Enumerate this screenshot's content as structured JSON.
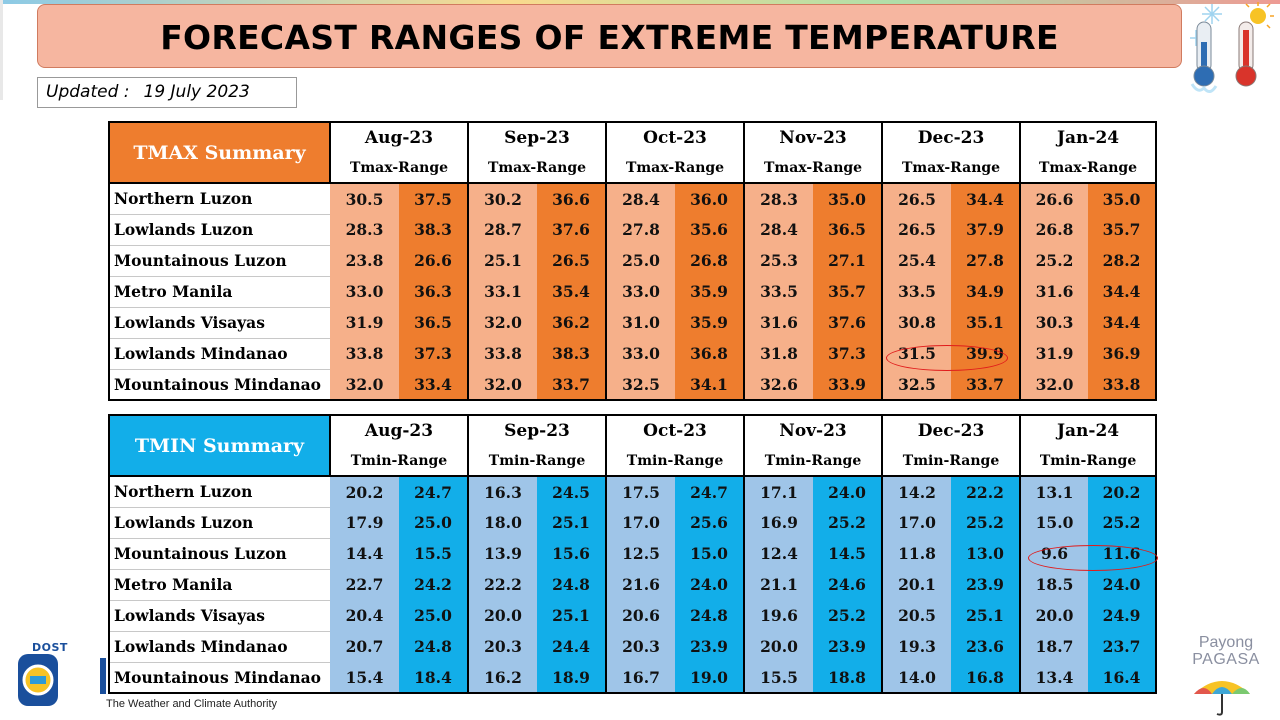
{
  "title": "FORECAST RANGES OF EXTREME TEMPERATURE",
  "updated": {
    "label": "Updated :",
    "date": "19 July 2023"
  },
  "months": [
    "Aug-23",
    "Sep-23",
    "Oct-23",
    "Nov-23",
    "Dec-23",
    "Jan-24"
  ],
  "regions": [
    "Northern Luzon",
    "Lowlands Luzon",
    "Mountainous Luzon",
    "Metro Manila",
    "Lowlands Visayas",
    "Lowlands Mindanao",
    "Mountainous Mindanao"
  ],
  "tmax": {
    "header": "TMAX Summary",
    "range_label": "Tmax-Range",
    "colors": {
      "header": "#ee7d2e",
      "low": "#f6b08a",
      "high": "#ee7d2e"
    },
    "rows": [
      [
        [
          "30.5",
          "37.5"
        ],
        [
          "30.2",
          "36.6"
        ],
        [
          "28.4",
          "36.0"
        ],
        [
          "28.3",
          "35.0"
        ],
        [
          "26.5",
          "34.4"
        ],
        [
          "26.6",
          "35.0"
        ]
      ],
      [
        [
          "28.3",
          "38.3"
        ],
        [
          "28.7",
          "37.6"
        ],
        [
          "27.8",
          "35.6"
        ],
        [
          "28.4",
          "36.5"
        ],
        [
          "26.5",
          "37.9"
        ],
        [
          "26.8",
          "35.7"
        ]
      ],
      [
        [
          "23.8",
          "26.6"
        ],
        [
          "25.1",
          "26.5"
        ],
        [
          "25.0",
          "26.8"
        ],
        [
          "25.3",
          "27.1"
        ],
        [
          "25.4",
          "27.8"
        ],
        [
          "25.2",
          "28.2"
        ]
      ],
      [
        [
          "33.0",
          "36.3"
        ],
        [
          "33.1",
          "35.4"
        ],
        [
          "33.0",
          "35.9"
        ],
        [
          "33.5",
          "35.7"
        ],
        [
          "33.5",
          "34.9"
        ],
        [
          "31.6",
          "34.4"
        ]
      ],
      [
        [
          "31.9",
          "36.5"
        ],
        [
          "32.0",
          "36.2"
        ],
        [
          "31.0",
          "35.9"
        ],
        [
          "31.6",
          "37.6"
        ],
        [
          "30.8",
          "35.1"
        ],
        [
          "30.3",
          "34.4"
        ]
      ],
      [
        [
          "33.8",
          "37.3"
        ],
        [
          "33.8",
          "38.3"
        ],
        [
          "33.0",
          "36.8"
        ],
        [
          "31.8",
          "37.3"
        ],
        [
          "31.5",
          "39.9"
        ],
        [
          "31.9",
          "36.9"
        ]
      ],
      [
        [
          "32.0",
          "33.4"
        ],
        [
          "32.0",
          "33.7"
        ],
        [
          "32.5",
          "34.1"
        ],
        [
          "32.6",
          "33.9"
        ],
        [
          "32.5",
          "33.7"
        ],
        [
          "32.0",
          "33.8"
        ]
      ]
    ]
  },
  "tmin": {
    "header": "TMIN Summary",
    "range_label": "Tmin-Range",
    "colors": {
      "header": "#12aee9",
      "low": "#9fc5e8",
      "high": "#12aee9"
    },
    "rows": [
      [
        [
          "20.2",
          "24.7"
        ],
        [
          "16.3",
          "24.5"
        ],
        [
          "17.5",
          "24.7"
        ],
        [
          "17.1",
          "24.0"
        ],
        [
          "14.2",
          "22.2"
        ],
        [
          "13.1",
          "20.2"
        ]
      ],
      [
        [
          "17.9",
          "25.0"
        ],
        [
          "18.0",
          "25.1"
        ],
        [
          "17.0",
          "25.6"
        ],
        [
          "16.9",
          "25.2"
        ],
        [
          "17.0",
          "25.2"
        ],
        [
          "15.0",
          "25.2"
        ]
      ],
      [
        [
          "14.4",
          "15.5"
        ],
        [
          "13.9",
          "15.6"
        ],
        [
          "12.5",
          "15.0"
        ],
        [
          "12.4",
          "14.5"
        ],
        [
          "11.8",
          "13.0"
        ],
        [
          "9.6",
          "11.6"
        ]
      ],
      [
        [
          "22.7",
          "24.2"
        ],
        [
          "22.2",
          "24.8"
        ],
        [
          "21.6",
          "24.0"
        ],
        [
          "21.1",
          "24.6"
        ],
        [
          "20.1",
          "23.9"
        ],
        [
          "18.5",
          "24.0"
        ]
      ],
      [
        [
          "20.4",
          "25.0"
        ],
        [
          "20.0",
          "25.1"
        ],
        [
          "20.6",
          "24.8"
        ],
        [
          "19.6",
          "25.2"
        ],
        [
          "20.5",
          "25.1"
        ],
        [
          "20.0",
          "24.9"
        ]
      ],
      [
        [
          "20.7",
          "24.8"
        ],
        [
          "20.3",
          "24.4"
        ],
        [
          "20.3",
          "23.9"
        ],
        [
          "20.0",
          "23.9"
        ],
        [
          "19.3",
          "23.6"
        ],
        [
          "18.7",
          "23.7"
        ]
      ],
      [
        [
          "15.4",
          "18.4"
        ],
        [
          "16.2",
          "18.9"
        ],
        [
          "16.7",
          "19.0"
        ],
        [
          "15.5",
          "18.8"
        ],
        [
          "14.0",
          "16.8"
        ],
        [
          "13.4",
          "16.4"
        ]
      ]
    ]
  },
  "highlight_color": "#e01b1b",
  "footer": {
    "agency_short": "DOST",
    "tagline": "The Weather and Climate Authority",
    "brand_line1": "Payong",
    "brand_line2": "PAGASA"
  },
  "icons": [
    "cold-thermometer-icon",
    "hot-thermometer-icon",
    "dost-logo-icon",
    "umbrella-icon"
  ]
}
